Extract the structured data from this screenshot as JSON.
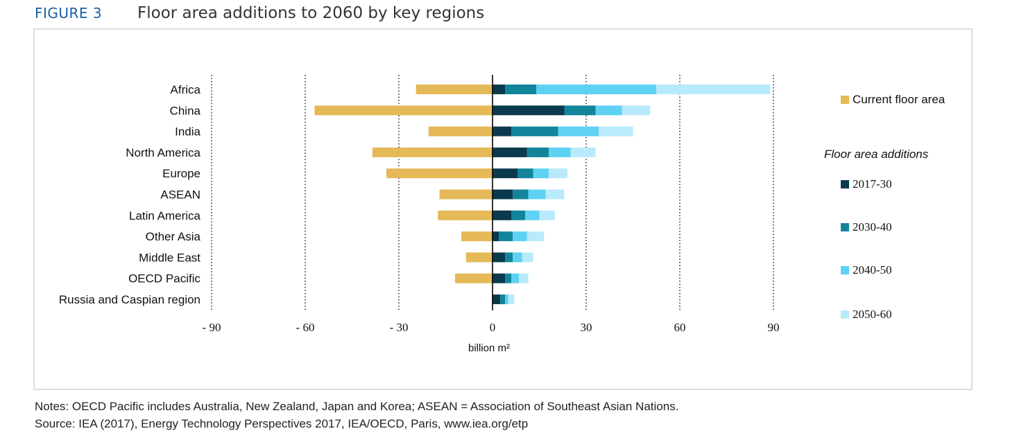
{
  "header": {
    "figure_number": "FIGURE 3",
    "title": "Floor area additions to 2060 by key regions"
  },
  "chart_data": {
    "type": "bar",
    "orientation": "horizontal",
    "stacked": true,
    "categories": [
      "Africa",
      "China",
      "India",
      "North America",
      "Europe",
      "ASEAN",
      "Latin America",
      "Other Asia",
      "Middle East",
      "OECD Pacific",
      "Russia and Caspian region"
    ],
    "current": {
      "name": "Current floor area",
      "values": [
        -24.5,
        -57,
        -20.5,
        -38.5,
        -34,
        -17,
        -17.5,
        -10,
        -8.5,
        -12,
        0
      ]
    },
    "additions_heading": "Floor area additions",
    "series": [
      {
        "name": "2017-30",
        "values": [
          4,
          23,
          6,
          11,
          8,
          6.5,
          6,
          2,
          4,
          4,
          2.5
        ]
      },
      {
        "name": "2030-40",
        "values": [
          10,
          10,
          15,
          7,
          5,
          5,
          4.5,
          4.5,
          2.5,
          2,
          1.5
        ]
      },
      {
        "name": "2040-50",
        "values": [
          38.5,
          8.5,
          13,
          7,
          5,
          5.5,
          4.5,
          4.5,
          3,
          2.5,
          1
        ]
      },
      {
        "name": "2050-60",
        "values": [
          36.5,
          9,
          11,
          8,
          6,
          6,
          5,
          5.5,
          3.5,
          3,
          2
        ]
      }
    ],
    "xlim": [
      -90,
      90
    ],
    "xticks": [
      "- 90",
      "- 60",
      "- 30",
      "0",
      "30",
      "60",
      "90"
    ],
    "xtick_values": [
      -90,
      -60,
      -30,
      0,
      30,
      60,
      90
    ],
    "xlabel": "billion m²",
    "grid": "dotted vertical",
    "legend_position": "right",
    "colors": {
      "current": "#e5b957",
      "series": [
        "#0b3a4f",
        "#12859a",
        "#5fd1f3",
        "#b9eafb"
      ],
      "axis": "#000000"
    }
  },
  "notes": {
    "notes_line": "Notes: OECD Pacific includes Australia, New Zealand, Japan and Korea; ASEAN = Association of Southeast Asian Nations.",
    "source_line": "Source: IEA (2017), Energy Technology Perspectives 2017, IEA/OECD, Paris, www.iea.org/etp"
  }
}
